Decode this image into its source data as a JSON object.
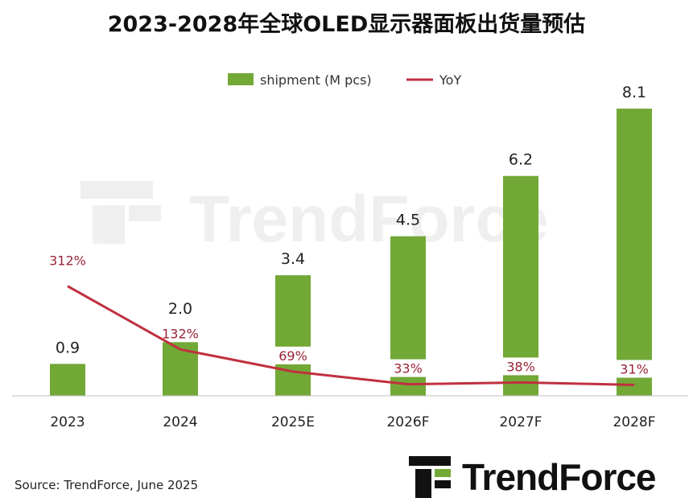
{
  "title": "2023-2028年全球OLED显示器面板出货量预估",
  "source": "Source: TrendForce, June 2025",
  "logo": {
    "text": "TrendForce"
  },
  "colors": {
    "bar": "#72a836",
    "line": "#c0303f",
    "yoy_text": "#9b2335"
  },
  "chart_data": {
    "type": "bar",
    "categories": [
      "2023",
      "2024",
      "2025E",
      "2026F",
      "2027F",
      "2028F"
    ],
    "series": [
      {
        "name": "shipment (M pcs)",
        "type": "bar",
        "values": [
          0.9,
          2.0,
          3.4,
          4.5,
          6.2,
          8.1
        ]
      },
      {
        "name": "YoY",
        "type": "line",
        "values": [
          312,
          132,
          69,
          33,
          38,
          31
        ],
        "labels": [
          "312%",
          "132%",
          "69%",
          "33%",
          "38%",
          "31%"
        ]
      }
    ],
    "value_labels": [
      "0.9",
      "2.0",
      "3.4",
      "4.5",
      "6.2",
      "8.1"
    ],
    "legend": "top-center",
    "grid": false
  }
}
